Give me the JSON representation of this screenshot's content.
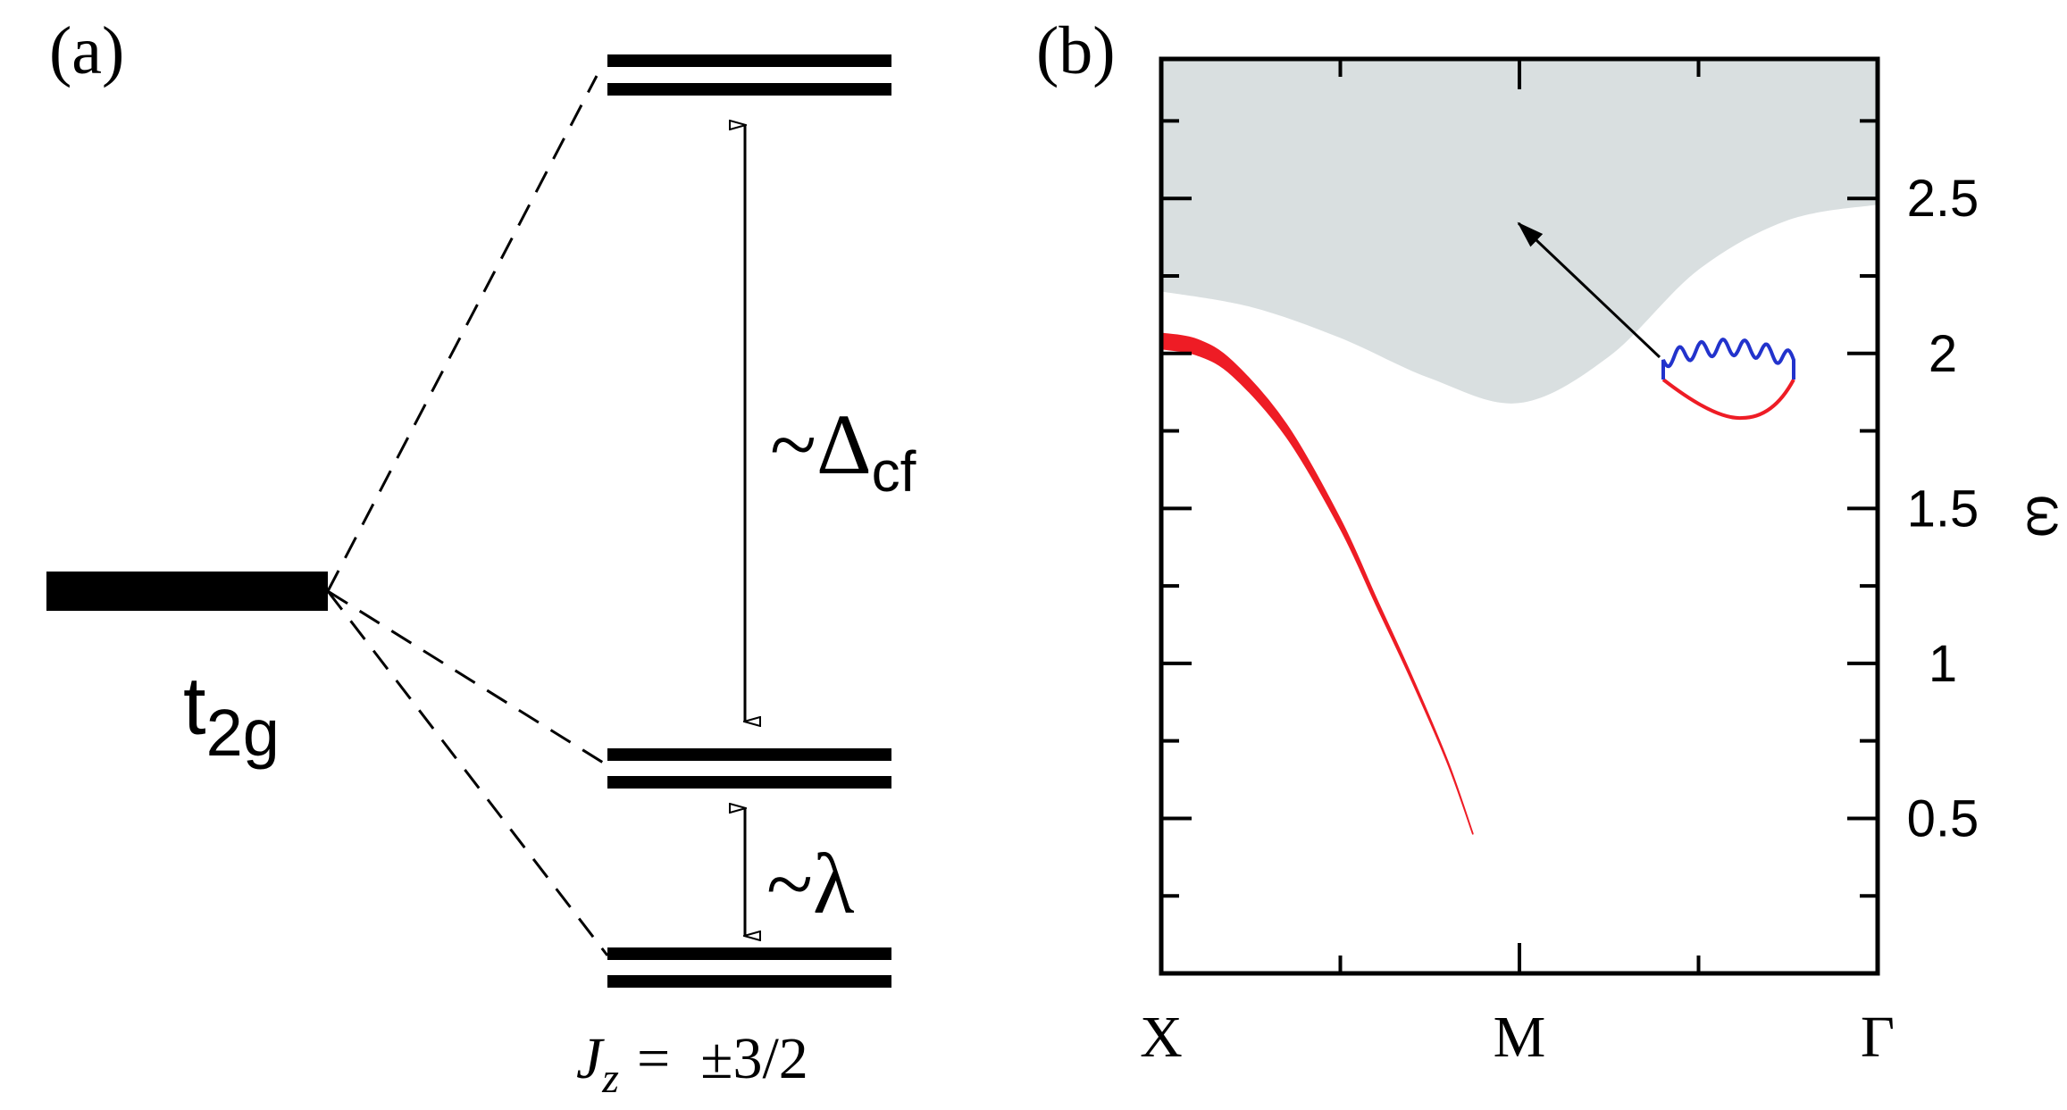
{
  "panel_a": {
    "label": "(a)",
    "base_level_name": "t",
    "base_level_sub": "2g",
    "gap_upper_symbol": "~Δ",
    "gap_upper_sub": "cf",
    "gap_lower_symbol": "~λ",
    "jz_lhs": "J",
    "jz_sub": "z",
    "jz_eq": "=",
    "jz_value": "±3/2"
  },
  "panel_b": {
    "label": "(b)",
    "colors": {
      "continuum": "#d9dfe0",
      "mode": "#ee1c25",
      "wavy": "#2233cc",
      "frame": "#000000"
    }
  },
  "chart_data": {
    "type": "area",
    "x_ticks": [
      "X",
      "M",
      "Γ"
    ],
    "ylabel": "ω",
    "y_ticks": [
      "0.5",
      "1",
      "1.5",
      "2",
      "2.5"
    ],
    "ylim": [
      0.0,
      2.95
    ],
    "x_domain": [
      0,
      2
    ],
    "continuum_lower_edge": {
      "x": [
        0.0,
        0.25,
        0.5,
        0.75,
        1.0,
        1.25,
        1.5,
        1.75,
        2.0
      ],
      "omega": [
        2.2,
        2.15,
        2.05,
        1.92,
        1.84,
        1.99,
        2.27,
        2.43,
        2.48
      ]
    },
    "continuum_upper_edge": 2.95,
    "magnon_mode": {
      "x": [
        0.0,
        0.1,
        0.2,
        0.35,
        0.5,
        0.6,
        0.7,
        0.8,
        0.87
      ],
      "omega": [
        2.04,
        2.02,
        1.95,
        1.75,
        1.45,
        1.2,
        0.95,
        0.68,
        0.45
      ],
      "width": [
        0.05,
        0.05,
        0.045,
        0.04,
        0.03,
        0.022,
        0.015,
        0.008,
        0.003
      ]
    }
  }
}
